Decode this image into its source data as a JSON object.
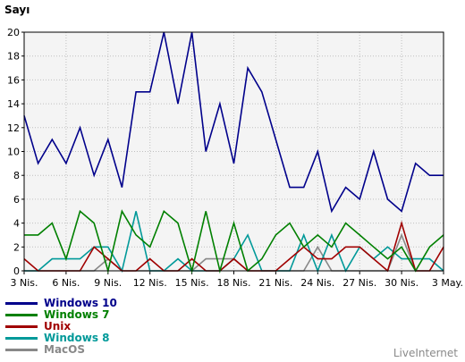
{
  "chart_data": {
    "type": "line",
    "ylabel": "Sayı",
    "ylim": [
      0,
      20
    ],
    "yticks": [
      0,
      2,
      4,
      6,
      8,
      10,
      12,
      14,
      16,
      18,
      20
    ],
    "x_tick_labels": [
      "3 Nis.",
      "6 Nis.",
      "9 Nis.",
      "12 Nis.",
      "15 Nis.",
      "18 Nis.",
      "21 Nis.",
      "24 Nis.",
      "27 Nis.",
      "30 Nis.",
      "3 May."
    ],
    "x_tick_every": 3,
    "points": 31,
    "grid": true,
    "legend_position": "bottom-left",
    "series": [
      {
        "name": "Windows 10",
        "color": "#00008b",
        "values": [
          13,
          9,
          11,
          9,
          12,
          8,
          11,
          7,
          15,
          15,
          20,
          14,
          20,
          10,
          14,
          9,
          17,
          15,
          11,
          7,
          7,
          10,
          5,
          7,
          6,
          10,
          6,
          5,
          9,
          8,
          8
        ]
      },
      {
        "name": "Windows 7",
        "color": "#008000",
        "values": [
          3,
          3,
          4,
          1,
          5,
          4,
          0,
          5,
          3,
          2,
          5,
          4,
          0,
          5,
          0,
          4,
          0,
          1,
          3,
          4,
          2,
          3,
          2,
          4,
          3,
          2,
          1,
          2,
          0,
          2,
          3
        ]
      },
      {
        "name": "Unix",
        "color": "#a00000",
        "values": [
          1,
          0,
          0,
          0,
          0,
          2,
          1,
          0,
          0,
          1,
          0,
          0,
          1,
          0,
          0,
          1,
          0,
          0,
          0,
          1,
          2,
          1,
          1,
          2,
          2,
          1,
          0,
          4,
          0,
          0,
          2
        ]
      },
      {
        "name": "Windows 8",
        "color": "#009999",
        "values": [
          0,
          0,
          1,
          1,
          1,
          2,
          2,
          0,
          5,
          0,
          0,
          1,
          0,
          0,
          0,
          1,
          3,
          0,
          0,
          0,
          3,
          0,
          3,
          0,
          2,
          1,
          2,
          1,
          1,
          1,
          0
        ]
      },
      {
        "name": "MacOS",
        "color": "#888888",
        "values": [
          0,
          0,
          0,
          0,
          0,
          0,
          1,
          0,
          0,
          0,
          0,
          0,
          0,
          1,
          1,
          1,
          0,
          0,
          0,
          0,
          0,
          2,
          0,
          0,
          0,
          0,
          0,
          3,
          0,
          0,
          0
        ]
      }
    ]
  },
  "watermark": "LiveInternet"
}
